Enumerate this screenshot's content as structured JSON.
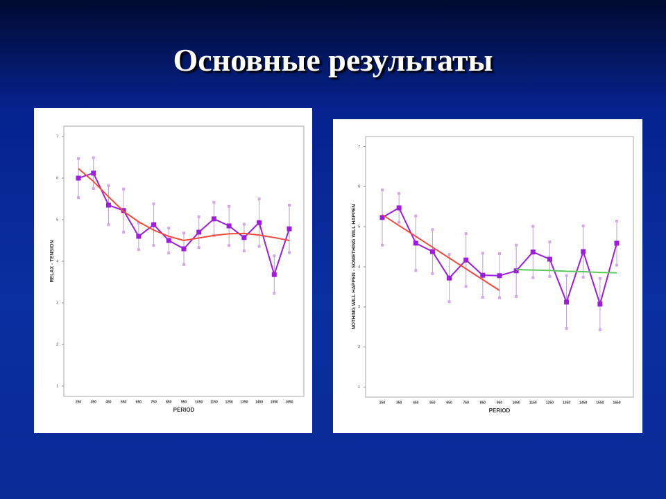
{
  "title": "Основные результаты",
  "chart_data": [
    {
      "type": "line",
      "xlabel": "PERIOD",
      "ylabel": "RELAX - TENSION",
      "categories": [
        "250",
        "350",
        "450",
        "550",
        "650",
        "750",
        "850",
        "950",
        "1050",
        "1150",
        "1250",
        "1350",
        "1450",
        "1550",
        "1650"
      ],
      "ylim": [
        0.75,
        7.25
      ],
      "yticks": [
        1,
        2,
        3,
        4,
        5,
        6,
        7
      ],
      "series": [
        {
          "color": "#9b1fd8",
          "marker": "square",
          "values": [
            6.0,
            6.12,
            5.35,
            5.22,
            4.6,
            4.88,
            4.5,
            4.3,
            4.7,
            5.02,
            4.85,
            4.57,
            4.93,
            3.68,
            4.78
          ],
          "errors": [
            0.47,
            0.37,
            0.47,
            0.52,
            0.32,
            0.5,
            0.3,
            0.38,
            0.37,
            0.4,
            0.47,
            0.32,
            0.57,
            0.45,
            0.57
          ]
        },
        {
          "color": "#f04a3c",
          "values": [
            6.23,
            5.92,
            5.55,
            5.2,
            4.95,
            4.75,
            4.6,
            4.5,
            4.56,
            4.62,
            4.66,
            4.67,
            4.63,
            4.57,
            4.5
          ]
        }
      ]
    },
    {
      "type": "line",
      "xlabel": "PERIOD",
      "ylabel": "NOTHING WILL HAPPEN - SOMETHING WILL HAPPEN",
      "categories": [
        "250",
        "350",
        "450",
        "550",
        "650",
        "750",
        "850",
        "950",
        "1050",
        "1150",
        "1250",
        "1350",
        "1450",
        "1550",
        "1650"
      ],
      "ylim": [
        0.75,
        7.25
      ],
      "yticks": [
        1,
        2,
        3,
        4,
        5,
        6,
        7
      ],
      "series": [
        {
          "color": "#9b1fd8",
          "marker": "square",
          "values": [
            5.23,
            5.47,
            4.59,
            4.38,
            3.72,
            4.17,
            3.79,
            3.78,
            3.9,
            4.37,
            4.19,
            3.12,
            4.38,
            3.07,
            4.59
          ],
          "errors": [
            0.69,
            0.36,
            0.68,
            0.55,
            0.59,
            0.66,
            0.55,
            0.55,
            0.64,
            0.64,
            0.43,
            0.66,
            0.64,
            0.64,
            0.55
          ]
        },
        {
          "color": "#f04a3c",
          "values": [
            5.3,
            5.03,
            4.76,
            4.49,
            4.22,
            3.95,
            3.68,
            3.41,
            null,
            null,
            null,
            null,
            null,
            null,
            null
          ]
        },
        {
          "color": "#5cc85c",
          "values": [
            null,
            null,
            null,
            null,
            null,
            null,
            null,
            null,
            3.93,
            3.92,
            3.91,
            3.89,
            3.88,
            3.86,
            3.85
          ]
        }
      ]
    }
  ]
}
